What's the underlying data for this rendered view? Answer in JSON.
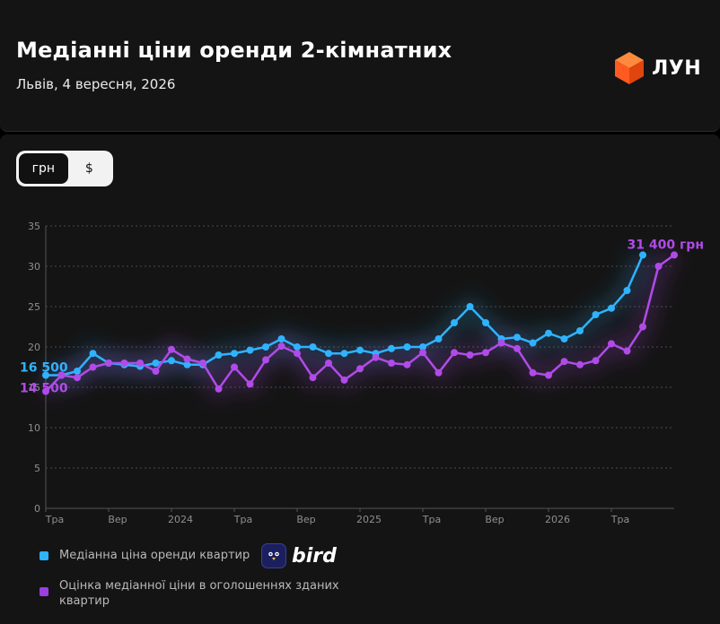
{
  "header": {
    "title": "Медіанні ціни оренди 2-кімнатних",
    "subtitle": "Львів, 4 вересня, 2026",
    "brand": "ЛУН",
    "brand_color": "#ff5a1f"
  },
  "toggle": {
    "options": [
      "грн",
      "$"
    ],
    "selected": "грн"
  },
  "legend": {
    "items": [
      {
        "label": "Медіанна ціна оренди квартир",
        "color": "#2fb3ff"
      },
      {
        "label": "Оцінка медіанної ціни в оголошеннях зданих квартир",
        "color": "#9b3fe0"
      }
    ],
    "partner": "bird"
  },
  "chart_data": {
    "type": "line",
    "x": [
      "2023-05",
      "2023-06",
      "2023-07",
      "2023-08",
      "2023-09",
      "2023-10",
      "2023-11",
      "2023-12",
      "2024-01",
      "2024-02",
      "2024-03",
      "2024-04",
      "2024-05",
      "2024-06",
      "2024-07",
      "2024-08",
      "2024-09",
      "2024-10",
      "2024-11",
      "2024-12",
      "2025-01",
      "2025-02",
      "2025-03",
      "2025-04",
      "2025-05",
      "2025-06",
      "2025-07",
      "2025-08",
      "2025-09",
      "2025-10",
      "2025-11",
      "2025-12",
      "2026-01",
      "2026-02",
      "2026-03",
      "2026-04",
      "2026-05",
      "2026-06",
      "2026-07",
      "2026-08",
      "2026-09"
    ],
    "x_tick_labels": [
      {
        "x": "2023-05",
        "label": "Тра"
      },
      {
        "x": "2023-09",
        "label": "Вер"
      },
      {
        "x": "2024-01",
        "label": "2024"
      },
      {
        "x": "2024-05",
        "label": "Тра"
      },
      {
        "x": "2024-09",
        "label": "Вер"
      },
      {
        "x": "2025-01",
        "label": "2025"
      },
      {
        "x": "2025-05",
        "label": "Тра"
      },
      {
        "x": "2025-09",
        "label": "Вер"
      },
      {
        "x": "2026-01",
        "label": "2026"
      },
      {
        "x": "2026-05",
        "label": "Тра"
      }
    ],
    "series": [
      {
        "color": "#2fb3ff",
        "values": [
          16.5,
          16.5,
          17.0,
          19.2,
          18.0,
          17.8,
          17.6,
          18.0,
          18.3,
          17.8,
          17.8,
          19.0,
          19.2,
          19.6,
          20.0,
          21.0,
          20.0,
          20.0,
          19.2,
          19.2,
          19.6,
          19.2,
          19.8,
          20.0,
          20.0,
          21.0,
          23.0,
          25.0,
          23.0,
          21.0,
          21.2,
          20.5,
          21.7,
          21.0,
          22.0,
          24.0,
          24.8,
          27.0,
          31.4,
          null,
          null
        ],
        "start_label": "16 500",
        "end_label": ""
      },
      {
        "color": "#b04be8",
        "values": [
          14.5,
          16.5,
          16.2,
          17.5,
          18.0,
          18.0,
          18.0,
          17.0,
          19.7,
          18.5,
          18.0,
          14.8,
          17.5,
          15.4,
          18.4,
          20.1,
          19.2,
          16.2,
          18.0,
          15.9,
          17.3,
          18.7,
          18.0,
          17.8,
          19.3,
          16.8,
          19.3,
          19.0,
          19.3,
          20.5,
          19.8,
          16.8,
          16.5,
          18.2,
          17.8,
          18.3,
          20.4,
          19.5,
          22.5,
          30.0,
          31.4
        ],
        "start_label": "14 500",
        "end_label": "31 400 грн"
      }
    ],
    "ylim": [
      0,
      35
    ],
    "y_ticks": [
      0,
      5,
      10,
      15,
      20,
      25,
      30,
      35
    ],
    "grid": true,
    "xlabel": "",
    "ylabel": ""
  }
}
